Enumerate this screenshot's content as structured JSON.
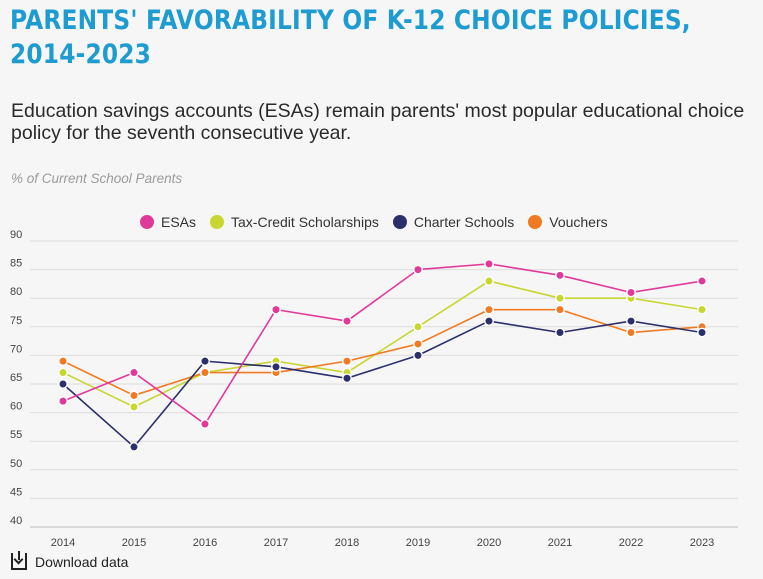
{
  "title": "PARENTS' FAVORABILITY OF K-12 CHOICE POLICIES, 2014-2023",
  "subtitle": "Education savings accounts (ESAs) remain parents' most popular educational choice policy for the seventh consecutive year.",
  "axis_note": "% of Current School Parents",
  "download_label": "Download data",
  "chart_data": {
    "type": "line",
    "title": "PARENTS' FAVORABILITY OF K-12 CHOICE POLICIES, 2014-2023",
    "subtitle": "Education savings accounts (ESAs) remain parents' most popular educational choice policy for the seventh consecutive year.",
    "ylabel": "% of Current School Parents",
    "xlabel": "",
    "x": [
      "2014",
      "2015",
      "2016",
      "2017",
      "2018",
      "2019",
      "2020",
      "2021",
      "2022",
      "2023"
    ],
    "ylim": [
      40,
      90
    ],
    "yticks": [
      40,
      45,
      50,
      55,
      60,
      65,
      70,
      75,
      80,
      85,
      90
    ],
    "grid": "horizontal",
    "legend_position": "top",
    "series": [
      {
        "name": "ESAs",
        "color": "#e0399a",
        "values": [
          62,
          67,
          58,
          78,
          76,
          85,
          86,
          84,
          81,
          83
        ]
      },
      {
        "name": "Tax-Credit Scholarships",
        "color": "#c8d630",
        "values": [
          67,
          61,
          67,
          69,
          67,
          75,
          83,
          80,
          80,
          78
        ]
      },
      {
        "name": "Charter Schools",
        "color": "#2b2f6b",
        "values": [
          65,
          54,
          69,
          68,
          66,
          70,
          76,
          74,
          76,
          74
        ]
      },
      {
        "name": "Vouchers",
        "color": "#f07a22",
        "values": [
          69,
          63,
          67,
          67,
          69,
          72,
          78,
          78,
          74,
          75
        ]
      }
    ]
  }
}
